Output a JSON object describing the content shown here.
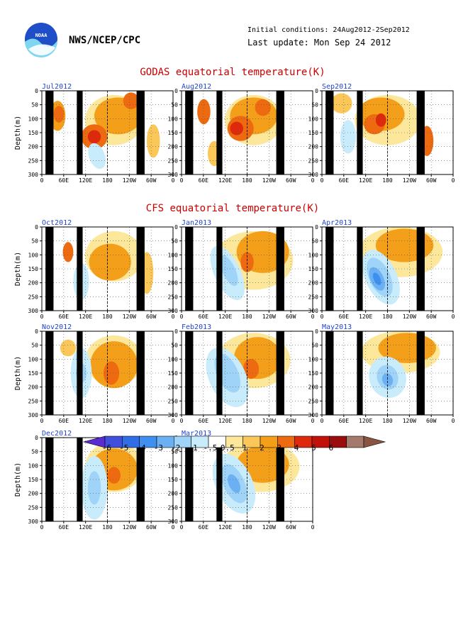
{
  "header": {
    "logo_text": "NOAA",
    "agency": "NWS/NCEP/CPC",
    "initial_conditions": "Initial conditions: 24Aug2012-2Sep2012",
    "last_update": "Last update: Mon Sep 24 2012"
  },
  "colors": {
    "section_title": "#cc0000",
    "panel_title": "#2244cc",
    "land_mask": "#000000"
  },
  "axes": {
    "ylabel": "Depth(m)",
    "y_ticks": [
      "0",
      "50",
      "100",
      "150",
      "200",
      "250",
      "300"
    ],
    "x_ticks": [
      "0",
      "60E",
      "120E",
      "180",
      "120W",
      "60W",
      "0"
    ],
    "depth_range": [
      0,
      300
    ],
    "lon_range": [
      0,
      360
    ]
  },
  "chart_data": {
    "type": "heatmap",
    "sections": [
      {
        "title": "GODAS equatorial temperature(K)"
      },
      {
        "title": "CFS equatorial temperature(K)"
      }
    ],
    "panels": [
      {
        "label": "Jul2012"
      },
      {
        "label": "Aug2012"
      },
      {
        "label": "Sep2012"
      },
      {
        "label": "Oct2012"
      },
      {
        "label": "Jan2013"
      },
      {
        "label": "Apr2013"
      },
      {
        "label": "Nov2012"
      },
      {
        "label": "Feb2013"
      },
      {
        "label": "May2013"
      },
      {
        "label": "Dec2012"
      },
      {
        "label": "Mar2013"
      }
    ],
    "colorbar": {
      "labels": [
        "-6",
        "-5",
        "-4",
        "-3",
        "-2",
        "-1",
        "-.5",
        "0.5",
        "1",
        "2",
        "3",
        "4",
        "5",
        "6"
      ],
      "colors": [
        "#5a2bd1",
        "#4050dc",
        "#2f6ee6",
        "#3f8fee",
        "#6ab0f3",
        "#9fd3f8",
        "#c8ecfb",
        "#ffffff",
        "#fde79a",
        "#fbc758",
        "#f49f19",
        "#ee6a10",
        "#dd2a0c",
        "#c0120b",
        "#9a0d0d",
        "#a47a6c",
        "#8a5442"
      ]
    }
  }
}
